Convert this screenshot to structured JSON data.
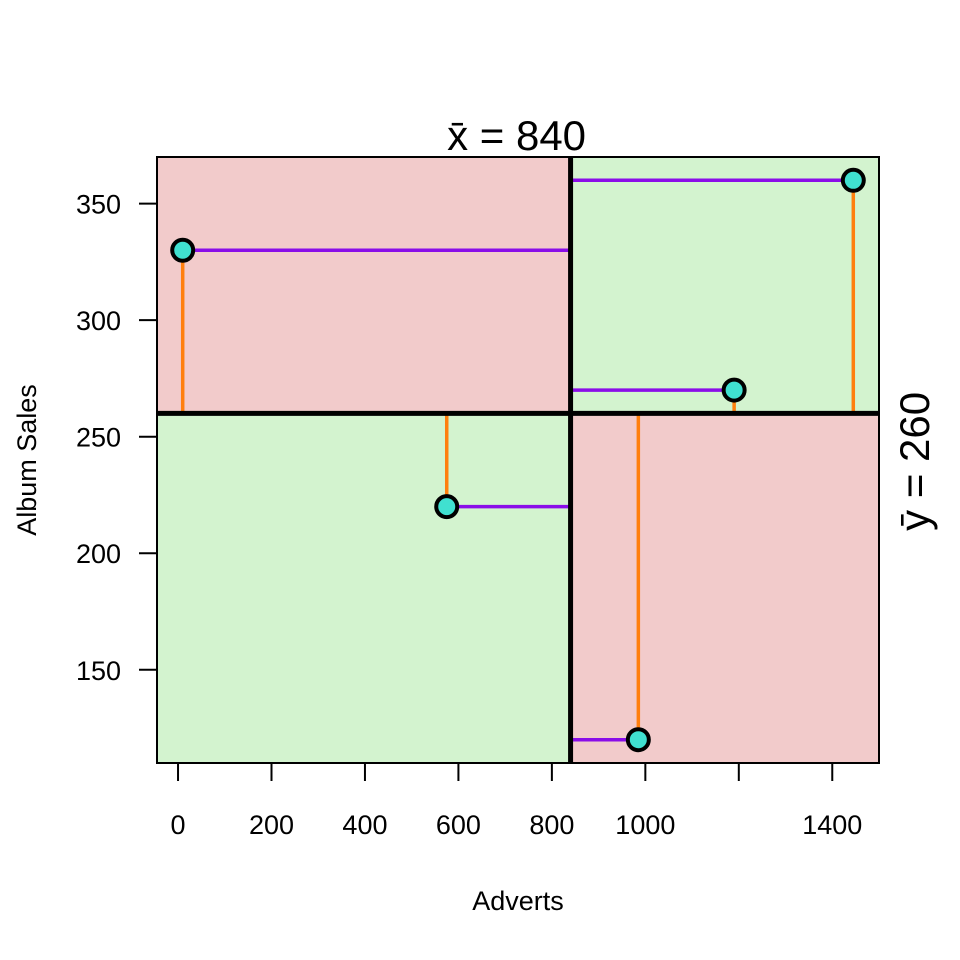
{
  "chart_data": {
    "type": "scatter",
    "xlabel": "Adverts",
    "ylabel": "Album Sales",
    "xlim": [
      -45,
      1500
    ],
    "ylim": [
      110,
      370
    ],
    "x_ticks": [
      0,
      200,
      400,
      600,
      800,
      1000,
      1400
    ],
    "y_ticks": [
      150,
      200,
      250,
      300,
      350
    ],
    "mean_x": 840,
    "mean_y": 260,
    "mean_x_label": "x̄ = 840",
    "mean_y_label": "ȳ = 260",
    "points": [
      {
        "x": 10,
        "y": 330
      },
      {
        "x": 575,
        "y": 220
      },
      {
        "x": 985,
        "y": 120
      },
      {
        "x": 1190,
        "y": 270
      },
      {
        "x": 1445,
        "y": 360
      }
    ],
    "colors": {
      "positive_quadrant": "#d3f3cf",
      "negative_quadrant": "#f2cbcb",
      "point_fill": "#40e0d0",
      "x_deviation_line": "#8a0de8",
      "y_deviation_line": "#ff7f0e",
      "mean_lines": "#000000"
    },
    "grid": false,
    "legend": "none"
  }
}
